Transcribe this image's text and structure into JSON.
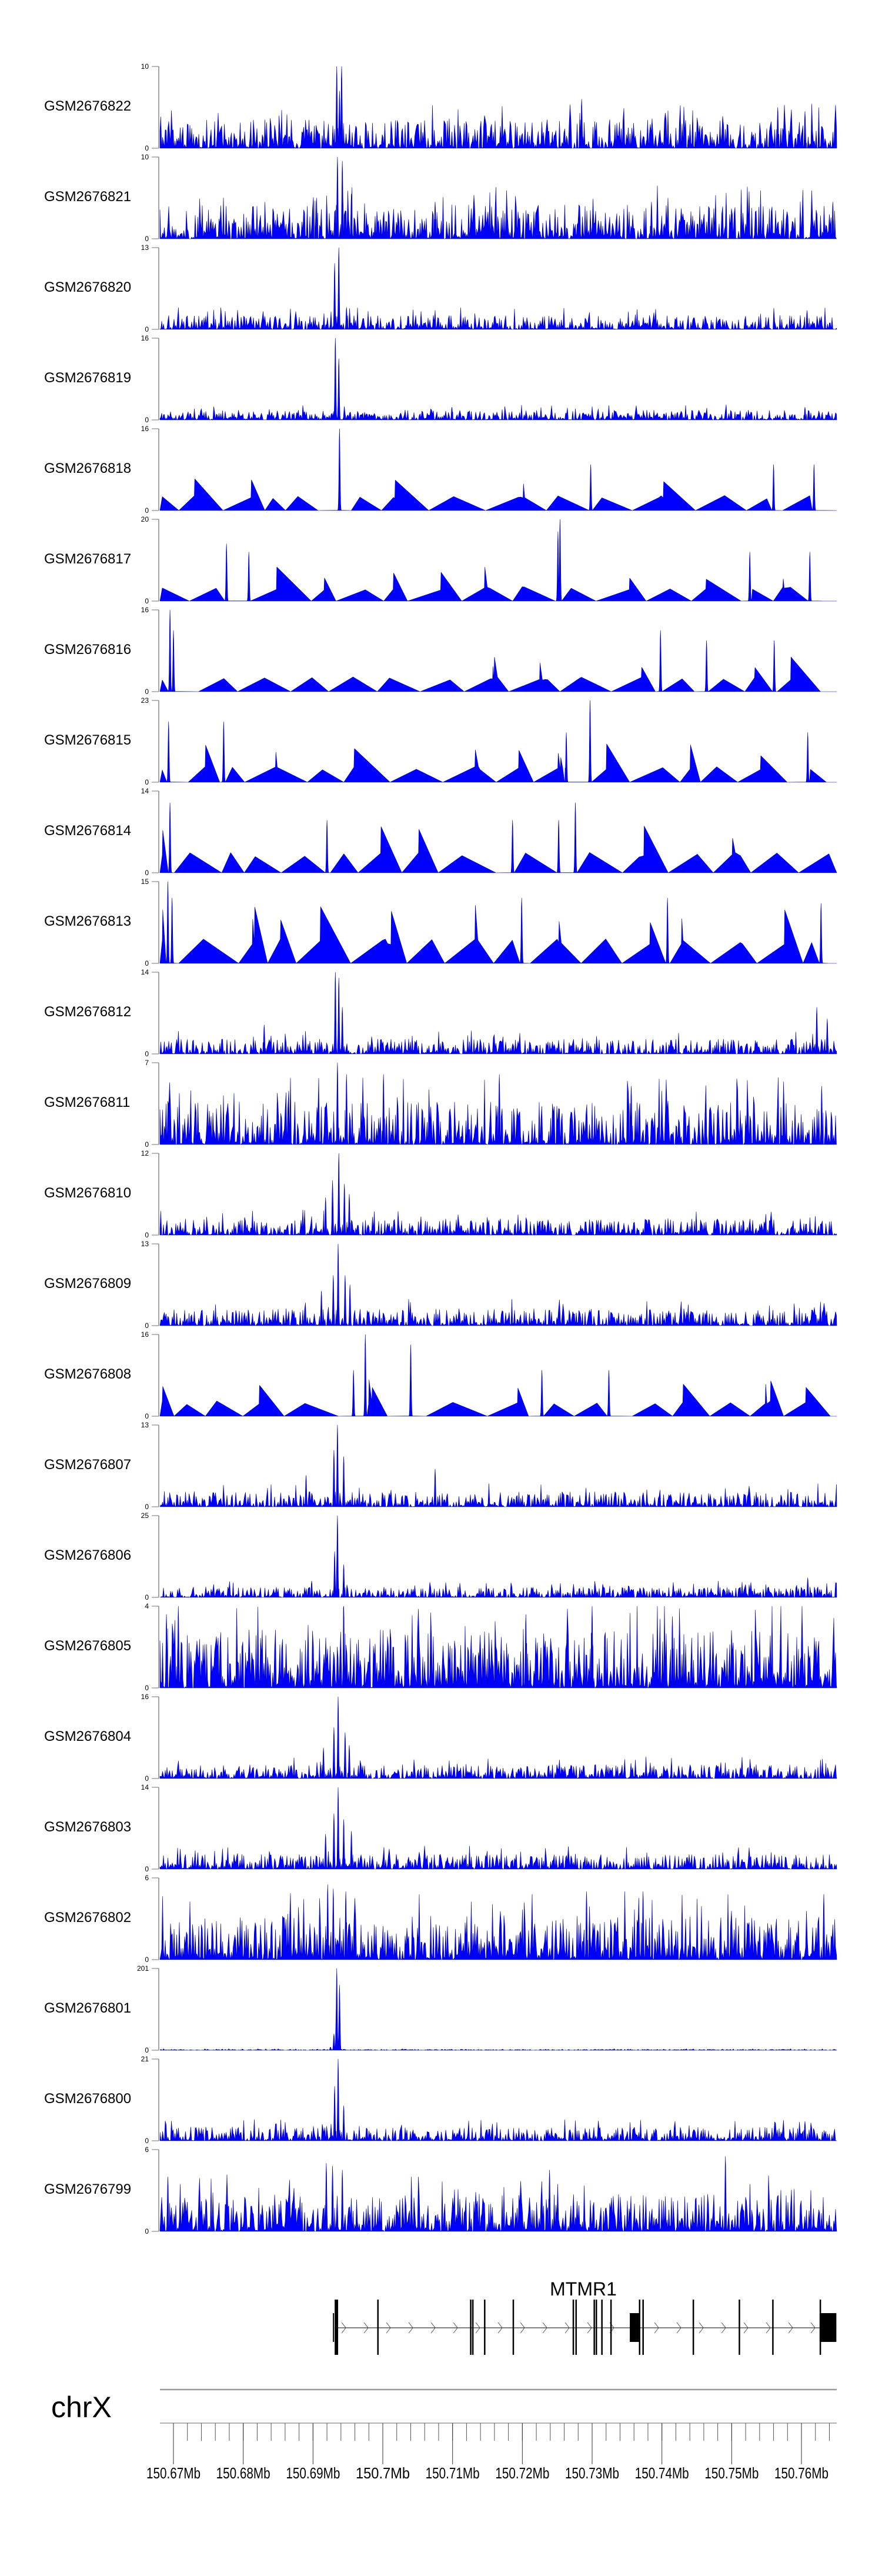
{
  "chart_data": {
    "type": "area",
    "title": "",
    "chromosome": "chrX",
    "xlim_mb": [
      150.668,
      150.765
    ],
    "x_ticks": [
      "150.67Mb",
      "150.68Mb",
      "150.69Mb",
      "150.7Mb",
      "150.71Mb",
      "150.72Mb",
      "150.73Mb",
      "150.74Mb",
      "150.75Mb",
      "150.76Mb"
    ],
    "x_tick_values_mb": [
      150.67,
      150.68,
      150.69,
      150.7,
      150.71,
      150.72,
      150.73,
      150.74,
      150.75,
      150.76
    ],
    "minor_tick_step_mb": 0.002,
    "fill_color": "#0000ff",
    "tracks": [
      {
        "name": "GSM2676822",
        "ymin": 0,
        "ymax": 10,
        "style": "dense",
        "baseline": 2.2,
        "peaks": [
          [
            150.6934,
            10
          ],
          [
            150.6941,
            10
          ],
          [
            150.6938,
            7
          ],
          [
            150.7285,
            6
          ],
          [
            150.7566,
            5
          ],
          [
            150.7605,
            4.5
          ]
        ]
      },
      {
        "name": "GSM2676821",
        "ymin": 0,
        "ymax": 10,
        "style": "dense",
        "baseline": 2.6,
        "peaks": [
          [
            150.6935,
            10
          ],
          [
            150.6942,
            9.5
          ],
          [
            150.6955,
            5.5
          ],
          [
            150.6905,
            5
          ],
          [
            150.7075,
            4.5
          ],
          [
            150.7385,
            4.5
          ],
          [
            150.7645,
            4.5
          ]
        ]
      },
      {
        "name": "GSM2676820",
        "ymin": 0,
        "ymax": 13,
        "style": "dense",
        "baseline": 1.4,
        "peaks": [
          [
            150.6931,
            10.5
          ],
          [
            150.6937,
            13
          ],
          [
            150.6948,
            3.5
          ],
          [
            150.7608,
            3
          ]
        ]
      },
      {
        "name": "GSM2676819",
        "ymin": 0,
        "ymax": 16,
        "style": "dense",
        "baseline": 1.2,
        "peaks": [
          [
            150.6932,
            16
          ],
          [
            150.6937,
            12
          ],
          [
            150.7099,
            2.5
          ],
          [
            150.7605,
            2.5
          ]
        ]
      },
      {
        "name": "GSM2676818",
        "ymin": 0,
        "ymax": 16,
        "style": "sparse",
        "baseline": 3,
        "peaks": [
          [
            150.6938,
            16
          ],
          [
            150.7298,
            9
          ],
          [
            150.756,
            9
          ],
          [
            150.7618,
            9
          ]
        ]
      },
      {
        "name": "GSM2676817",
        "ymin": 0,
        "ymax": 20,
        "style": "sparse",
        "baseline": 3.5,
        "peaks": [
          [
            150.7251,
            17
          ],
          [
            150.7254,
            20
          ],
          [
            150.6776,
            14
          ],
          [
            150.6808,
            12
          ],
          [
            150.7612,
            12
          ],
          [
            150.7526,
            12
          ]
        ]
      },
      {
        "name": "GSM2676816",
        "ymin": 0,
        "ymax": 16,
        "style": "sparse",
        "baseline": 3,
        "peaks": [
          [
            150.6695,
            16
          ],
          [
            150.67,
            12
          ],
          [
            150.7398,
            12
          ],
          [
            150.7464,
            10
          ],
          [
            150.7561,
            10
          ]
        ]
      },
      {
        "name": "GSM2676815",
        "ymin": 0,
        "ymax": 23,
        "style": "sparse",
        "baseline": 4.5,
        "peaks": [
          [
            150.7297,
            23
          ],
          [
            150.6693,
            17
          ],
          [
            150.6772,
            17
          ],
          [
            150.7263,
            14
          ],
          [
            150.7609,
            14
          ]
        ]
      },
      {
        "name": "GSM2676814",
        "ymin": 0,
        "ymax": 14,
        "style": "sparse",
        "baseline": 3.5,
        "peaks": [
          [
            150.6695,
            12
          ],
          [
            150.7276,
            12
          ],
          [
            150.7252,
            9
          ],
          [
            150.7186,
            9
          ],
          [
            150.692,
            9
          ]
        ]
      },
      {
        "name": "GSM2676813",
        "ymin": 0,
        "ymax": 15,
        "style": "sparse",
        "baseline": 4.5,
        "peaks": [
          [
            150.6692,
            15
          ],
          [
            150.6698,
            12
          ],
          [
            150.7199,
            12
          ],
          [
            150.7408,
            12
          ],
          [
            150.7628,
            11
          ]
        ]
      },
      {
        "name": "GSM2676812",
        "ymin": 0,
        "ymax": 14,
        "style": "dense",
        "baseline": 1.6,
        "peaks": [
          [
            150.6932,
            14
          ],
          [
            150.6937,
            13
          ],
          [
            150.6942,
            8
          ],
          [
            150.7622,
            8
          ],
          [
            150.7637,
            6
          ],
          [
            150.683,
            5
          ]
        ]
      },
      {
        "name": "GSM2676811",
        "ymin": 0,
        "ymax": 7,
        "style": "dense",
        "baseline": 2.3,
        "peaks": [
          [
            150.6935,
            7
          ],
          [
            150.6948,
            6
          ],
          [
            150.7001,
            6
          ],
          [
            150.7167,
            6
          ],
          [
            150.7356,
            5
          ],
          [
            150.7629,
            5
          ]
        ]
      },
      {
        "name": "GSM2676810",
        "ymin": 0,
        "ymax": 12,
        "style": "dense",
        "baseline": 1.5,
        "peaks": [
          [
            150.6937,
            12
          ],
          [
            150.6928,
            8
          ],
          [
            150.6945,
            7.5
          ],
          [
            150.6952,
            6
          ],
          [
            150.6918,
            5.5
          ]
        ]
      },
      {
        "name": "GSM2676809",
        "ymin": 0,
        "ymax": 13,
        "style": "dense",
        "baseline": 1.7,
        "peaks": [
          [
            150.6936,
            13
          ],
          [
            150.6929,
            8
          ],
          [
            150.6946,
            8
          ],
          [
            150.6953,
            6.5
          ],
          [
            150.6912,
            5.5
          ]
        ]
      },
      {
        "name": "GSM2676808",
        "ymin": 0,
        "ymax": 16,
        "style": "sparse",
        "baseline": 3,
        "peaks": [
          [
            150.6975,
            16
          ],
          [
            150.704,
            14
          ],
          [
            150.6958,
            9
          ],
          [
            150.7228,
            9
          ],
          [
            150.7324,
            9
          ]
        ]
      },
      {
        "name": "GSM2676807",
        "ymin": 0,
        "ymax": 13,
        "style": "dense",
        "baseline": 1.5,
        "peaks": [
          [
            150.6935,
            13
          ],
          [
            150.693,
            9
          ],
          [
            150.6944,
            8
          ],
          [
            150.7075,
            6
          ],
          [
            150.689,
            5
          ]
        ]
      },
      {
        "name": "GSM2676806",
        "ymin": 0,
        "ymax": 25,
        "style": "dense",
        "baseline": 2,
        "peaks": [
          [
            150.6935,
            25
          ],
          [
            150.6931,
            14
          ],
          [
            150.6944,
            10
          ],
          [
            150.7609,
            6
          ],
          [
            150.6898,
            5
          ]
        ]
      },
      {
        "name": "GSM2676805",
        "ymin": 0,
        "ymax": 4,
        "style": "dense",
        "baseline": 1.8,
        "peaks": [
          [
            150.6707,
            4
          ],
          [
            150.6944,
            4
          ],
          [
            150.73,
            4
          ],
          [
            150.669,
            3.6
          ],
          [
            150.7415,
            3.5
          ],
          [
            150.7205,
            3.6
          ]
        ]
      },
      {
        "name": "GSM2676804",
        "ymin": 0,
        "ymax": 16,
        "style": "dense",
        "baseline": 1.7,
        "peaks": [
          [
            150.6936,
            16
          ],
          [
            150.693,
            10
          ],
          [
            150.6946,
            9
          ],
          [
            150.6952,
            6.5
          ],
          [
            150.6915,
            6
          ]
        ]
      },
      {
        "name": "GSM2676803",
        "ymin": 0,
        "ymax": 14,
        "style": "dense",
        "baseline": 1.6,
        "peaks": [
          [
            150.6936,
            14
          ],
          [
            150.693,
            9.5
          ],
          [
            150.6944,
            8.5
          ],
          [
            150.6955,
            6.5
          ],
          [
            150.6918,
            6
          ]
        ]
      },
      {
        "name": "GSM2676802",
        "ymin": 0,
        "ymax": 6,
        "style": "dense",
        "baseline": 2,
        "peaks": [
          [
            150.6921,
            5.5
          ],
          [
            150.6929,
            5.2
          ],
          [
            150.6947,
            5
          ],
          [
            150.7292,
            5
          ],
          [
            150.7373,
            5
          ],
          [
            150.7632,
            4.8
          ]
        ]
      },
      {
        "name": "GSM2676801",
        "ymin": 0,
        "ymax": 201,
        "style": "dense",
        "baseline": 1.5,
        "peaks": [
          [
            150.6934,
            201
          ],
          [
            150.6938,
            160
          ],
          [
            150.693,
            40
          ],
          [
            150.6925,
            8
          ]
        ]
      },
      {
        "name": "GSM2676800",
        "ymin": 0,
        "ymax": 21,
        "style": "dense",
        "baseline": 2.2,
        "peaks": [
          [
            150.6936,
            21
          ],
          [
            150.6931,
            14
          ],
          [
            150.6944,
            9
          ],
          [
            150.7605,
            5
          ],
          [
            150.668,
            4
          ]
        ]
      },
      {
        "name": "GSM2676799",
        "ymin": 0,
        "ymax": 6,
        "style": "dense",
        "baseline": 1.7,
        "peaks": [
          [
            150.6919,
            5
          ],
          [
            150.6928,
            4.8
          ],
          [
            150.6942,
            4.5
          ],
          [
            150.7491,
            5.5
          ],
          [
            150.7239,
            4.5
          ],
          [
            150.6692,
            4
          ]
        ]
      }
    ],
    "gene": {
      "name": "MTMR1",
      "strand": "+",
      "start_mb": 150.6931,
      "end_mb": 150.765,
      "exons_mb": [
        [
          150.6931,
          150.6936
        ],
        [
          150.6992,
          150.6993
        ],
        [
          150.7125,
          150.7126
        ],
        [
          150.7128,
          150.7129
        ],
        [
          150.7145,
          150.7146
        ],
        [
          150.7186,
          150.7187
        ],
        [
          150.7272,
          150.7273
        ],
        [
          150.7276,
          150.7277
        ],
        [
          150.7302,
          150.7303
        ],
        [
          150.7305,
          150.7306
        ],
        [
          150.7313,
          150.7314
        ],
        [
          150.7326,
          150.7327
        ],
        [
          150.7367,
          150.7368
        ],
        [
          150.7372,
          150.7373
        ],
        [
          150.7444,
          150.7445
        ],
        [
          150.751,
          150.7512
        ],
        [
          150.7558,
          150.7559
        ],
        [
          150.7626,
          150.7627
        ]
      ],
      "utr_blocks_mb": [
        [
          150.7354,
          150.7367
        ],
        [
          150.7626,
          150.765
        ]
      ]
    }
  }
}
